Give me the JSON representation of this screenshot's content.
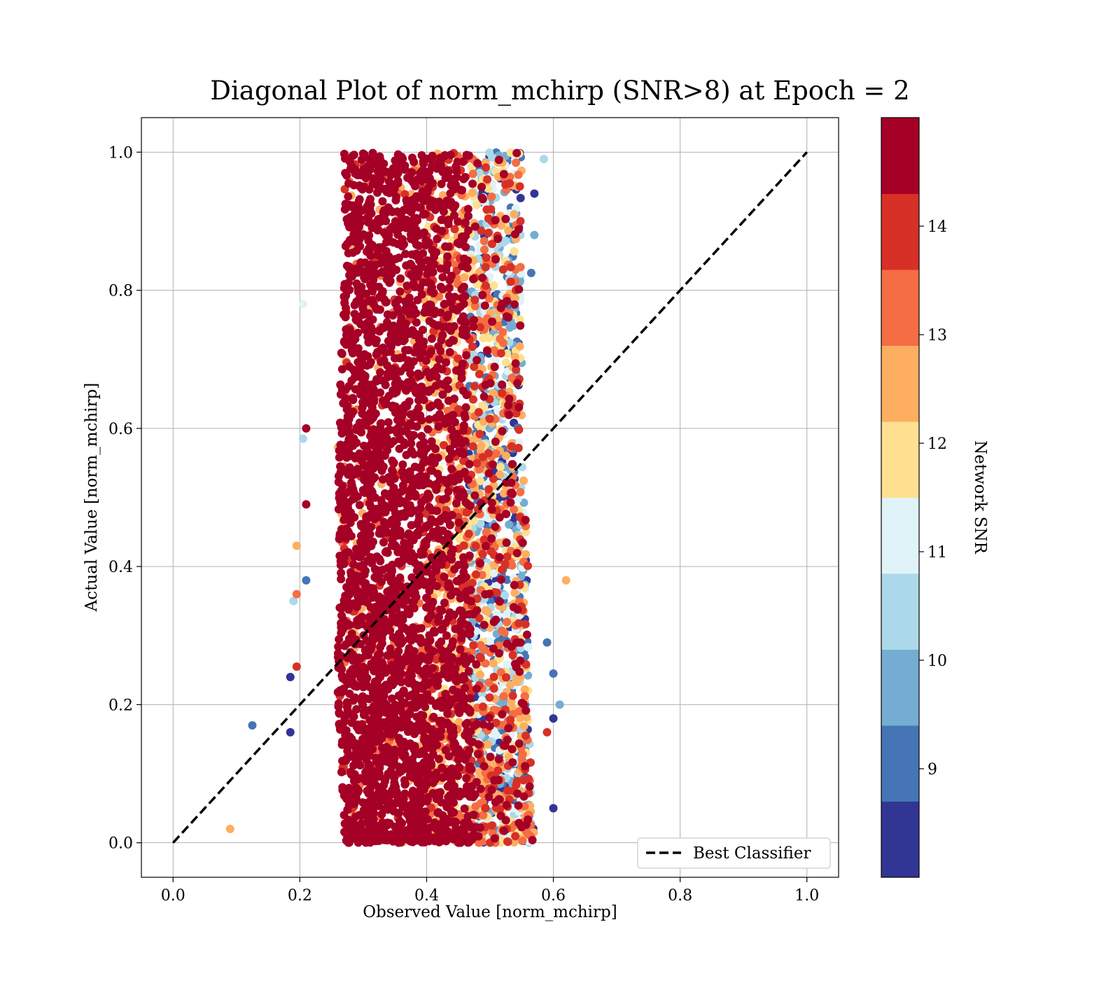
{
  "chart_data": {
    "type": "scatter",
    "title": "Diagonal Plot of norm_mchirp (SNR>8) at Epoch = 2",
    "xlabel": "Observed Value [norm_mchirp]",
    "ylabel": "Actual Value [norm_mchirp]",
    "xlim": [
      -0.05,
      1.05
    ],
    "ylim": [
      -0.05,
      1.05
    ],
    "xticks": [
      "0.0",
      "0.2",
      "0.4",
      "0.6",
      "0.8",
      "1.0"
    ],
    "yticks": [
      "0.0",
      "0.2",
      "0.4",
      "0.6",
      "0.8",
      "1.0"
    ],
    "grid": true,
    "legend": {
      "placement": "lower-right",
      "entries": [
        {
          "label": "Best Classifier",
          "style": "dashed",
          "color": "#000000"
        }
      ]
    },
    "reference_line": {
      "name": "Best Classifier",
      "x": [
        0.0,
        1.0
      ],
      "y": [
        0.0,
        1.0
      ]
    },
    "colorbar": {
      "label": "Network SNR",
      "range": [
        8,
        15
      ],
      "ticks": [
        "9",
        "10",
        "11",
        "12",
        "13",
        "14"
      ],
      "bins": [
        {
          "from": 8.0,
          "to": 8.7,
          "color": "#313695"
        },
        {
          "from": 8.7,
          "to": 9.4,
          "color": "#4575b4"
        },
        {
          "from": 9.4,
          "to": 10.1,
          "color": "#74add1"
        },
        {
          "from": 10.1,
          "to": 10.8,
          "color": "#abd9e9"
        },
        {
          "from": 10.8,
          "to": 11.5,
          "color": "#e0f3f8"
        },
        {
          "from": 11.5,
          "to": 12.2,
          "color": "#fee090"
        },
        {
          "from": 12.2,
          "to": 12.9,
          "color": "#fdae61"
        },
        {
          "from": 12.9,
          "to": 13.6,
          "color": "#f46d43"
        },
        {
          "from": 13.6,
          "to": 14.3,
          "color": "#d73027"
        },
        {
          "from": 14.3,
          "to": 15.0,
          "color": "#a50026"
        }
      ]
    },
    "series": [
      {
        "x_range_by_actual": [
          {
            "y": 0.0,
            "x": [
              0.27,
              0.57
            ]
          },
          {
            "y": 0.2,
            "x": [
              0.26,
              0.56
            ]
          },
          {
            "y": 0.4,
            "x": [
              0.26,
              0.56
            ]
          },
          {
            "y": 0.6,
            "x": [
              0.26,
              0.55
            ]
          },
          {
            "y": 0.8,
            "x": [
              0.27,
              0.55
            ]
          },
          {
            "y": 1.0,
            "x": [
              0.27,
              0.55
            ]
          }
        ],
        "dense_core_x": [
          0.27,
          0.42
        ],
        "outliers": [
          {
            "x": 0.09,
            "y": 0.02,
            "snr": 12.5
          },
          {
            "x": 0.125,
            "y": 0.17,
            "snr": 9.0
          },
          {
            "x": 0.185,
            "y": 0.24,
            "snr": 8.3
          },
          {
            "x": 0.185,
            "y": 0.16,
            "snr": 8.3
          },
          {
            "x": 0.21,
            "y": 0.6,
            "snr": 14.8
          },
          {
            "x": 0.21,
            "y": 0.49,
            "snr": 14.8
          },
          {
            "x": 0.21,
            "y": 0.38,
            "snr": 9.0
          },
          {
            "x": 0.195,
            "y": 0.43,
            "snr": 12.5
          },
          {
            "x": 0.195,
            "y": 0.36,
            "snr": 13.2
          },
          {
            "x": 0.19,
            "y": 0.35,
            "snr": 10.5
          },
          {
            "x": 0.205,
            "y": 0.78,
            "snr": 11.0
          },
          {
            "x": 0.205,
            "y": 0.585,
            "snr": 10.5
          },
          {
            "x": 0.195,
            "y": 0.255,
            "snr": 14.0
          },
          {
            "x": 0.62,
            "y": 0.38,
            "snr": 12.5
          },
          {
            "x": 0.61,
            "y": 0.2,
            "snr": 9.8
          },
          {
            "x": 0.6,
            "y": 0.18,
            "snr": 8.3
          },
          {
            "x": 0.6,
            "y": 0.245,
            "snr": 9.0
          },
          {
            "x": 0.585,
            "y": 0.99,
            "snr": 10.5
          },
          {
            "x": 0.57,
            "y": 0.94,
            "snr": 8.3
          },
          {
            "x": 0.57,
            "y": 0.88,
            "snr": 9.8
          },
          {
            "x": 0.565,
            "y": 0.825,
            "snr": 9.0
          },
          {
            "x": 0.59,
            "y": 0.29,
            "snr": 9.0
          },
          {
            "x": 0.59,
            "y": 0.16,
            "snr": 14.0
          },
          {
            "x": 0.6,
            "y": 0.05,
            "snr": 8.3
          }
        ]
      }
    ]
  }
}
